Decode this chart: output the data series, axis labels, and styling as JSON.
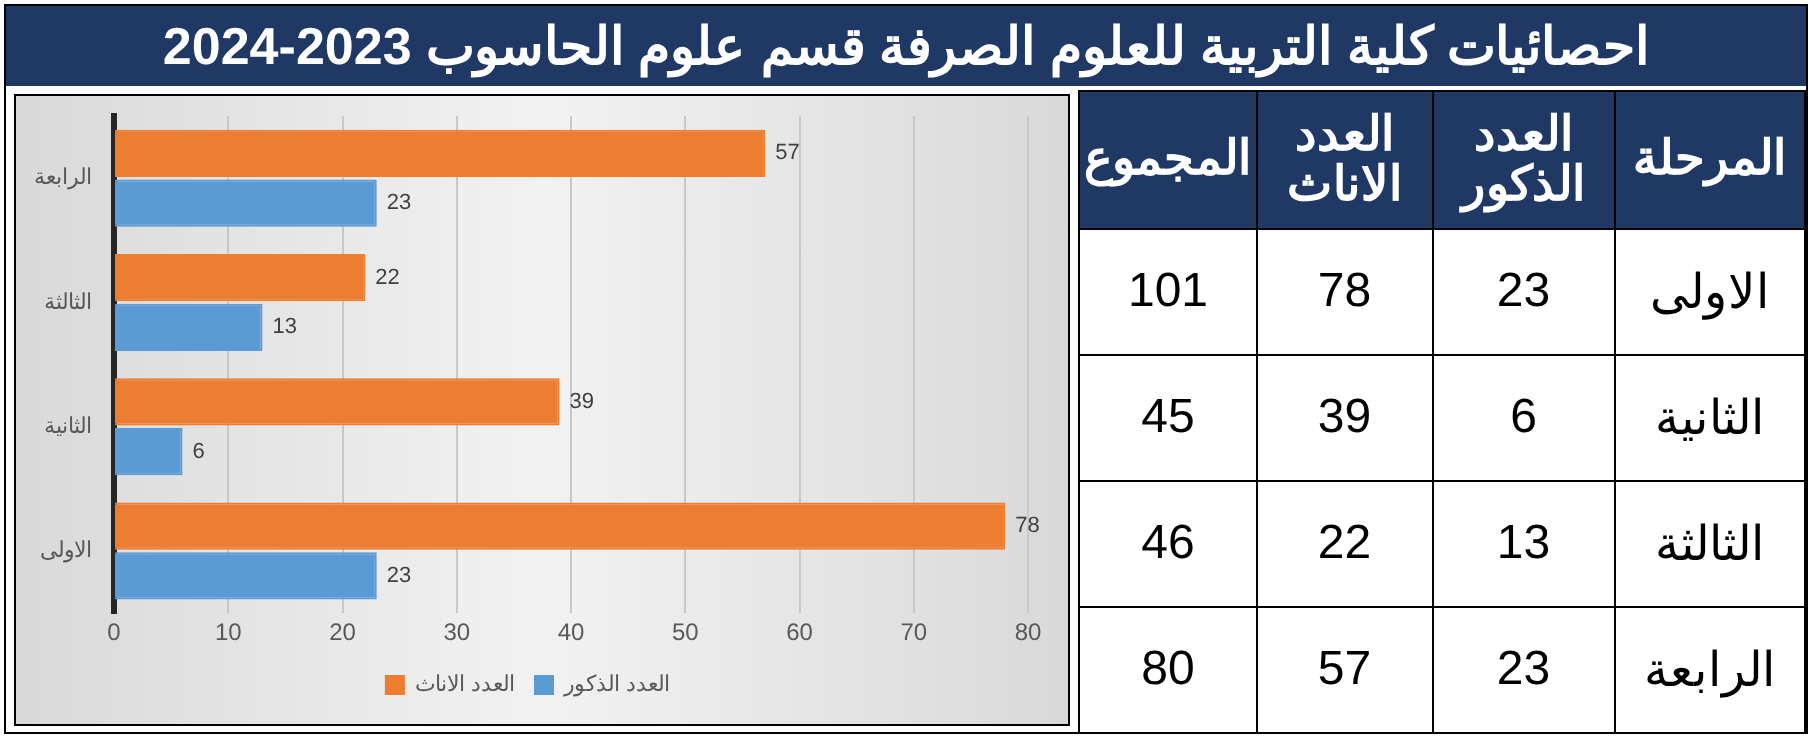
{
  "chart_data": [
    {
      "type": "bar",
      "orientation": "horizontal",
      "title": "احصائيات كلية التربية للعلوم الصرفة قسم علوم الحاسوب 2023-2024",
      "categories": [
        "الرابعة",
        "الثالثة",
        "الثانية",
        "الاولى"
      ],
      "series": [
        {
          "name": "العدد الاناث",
          "color": "#ed7d31",
          "values": [
            57,
            22,
            39,
            78
          ]
        },
        {
          "name": "العدد الذكور",
          "color": "#5b9bd5",
          "values": [
            23,
            13,
            6,
            23
          ]
        }
      ],
      "xlim": [
        0,
        80
      ],
      "xticks": [
        0,
        10,
        20,
        30,
        40,
        50,
        60,
        70,
        80
      ],
      "grid": "x",
      "legend": "bottom",
      "data_labels": true
    },
    {
      "type": "other",
      "categories": [
        "الاولى",
        "الثانية",
        "الثالثة",
        "الرابعة"
      ],
      "series": [
        {
          "name": "العدد الذكور",
          "values": [
            23,
            6,
            13,
            23
          ]
        },
        {
          "name": "العدد الاناث",
          "values": [
            78,
            39,
            22,
            57
          ]
        },
        {
          "name": "المجموع",
          "values": [
            101,
            45,
            46,
            80
          ]
        }
      ],
      "data_labels": true,
      "annotations": [
        "المرحلة"
      ]
    }
  ]
}
